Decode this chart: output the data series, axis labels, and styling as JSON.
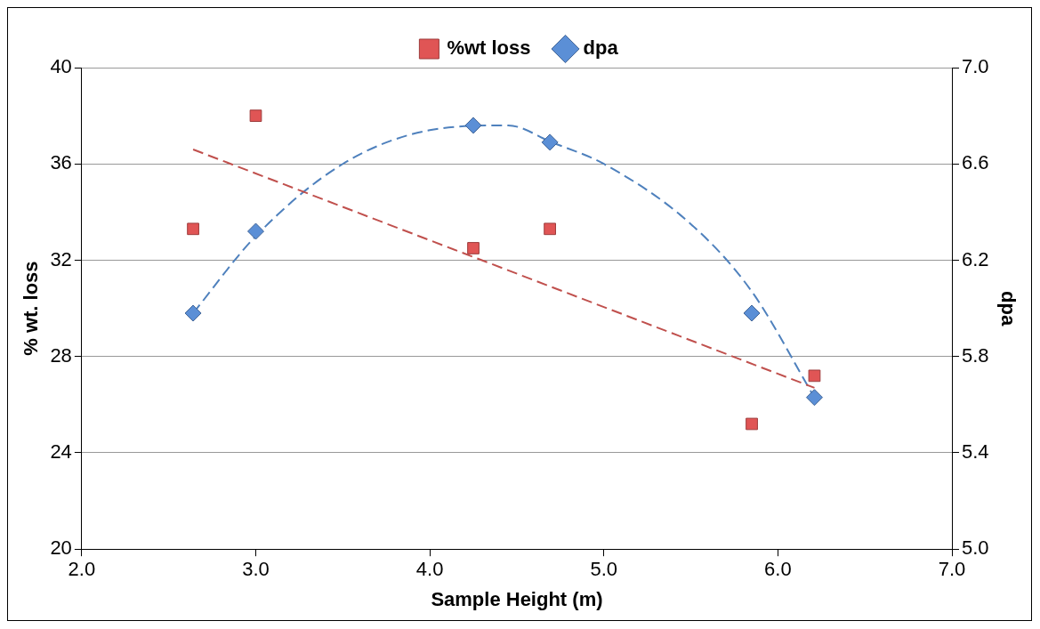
{
  "chart_data": {
    "type": "scatter",
    "xlabel": "Sample Height (m)",
    "ylabel": "% wt. loss",
    "y2label": "dpa",
    "xlim": [
      2,
      7
    ],
    "xticks": [
      {
        "value": 2,
        "label": "2.0"
      },
      {
        "value": 3,
        "label": "3.0"
      },
      {
        "value": 4,
        "label": "4.0"
      },
      {
        "value": 5,
        "label": "5.0"
      },
      {
        "value": 6,
        "label": "6.0"
      },
      {
        "value": 7,
        "label": "7.0"
      }
    ],
    "ylim": [
      20,
      40
    ],
    "yticks": [
      20,
      24,
      28,
      32,
      36,
      40
    ],
    "y2lim": [
      5,
      7
    ],
    "y2ticks": [
      {
        "value": 5,
        "label": "5.0"
      },
      5.4,
      5.8,
      6.2,
      6.6,
      {
        "value": 7,
        "label": "7.0"
      }
    ],
    "grid": "y",
    "legend": "top",
    "series": [
      {
        "name": "%wt loss",
        "marker": "square",
        "color": "#e05555",
        "x": [
          2.64,
          3.0,
          4.25,
          4.69,
          5.85,
          6.21
        ],
        "values": [
          33.3,
          38.0,
          32.5,
          33.3,
          25.2,
          27.2
        ]
      },
      {
        "name": "dpa",
        "marker": "diamond",
        "color": "#5b8fd6",
        "axis": "y2",
        "x": [
          2.64,
          3.0,
          4.25,
          4.69,
          5.85,
          6.21
        ],
        "values": [
          5.98,
          6.32,
          6.76,
          6.69,
          5.98,
          5.63
        ]
      },
      {
        "type": "line",
        "marker": "none",
        "line_style": "dashed",
        "color": "#c0504d",
        "x": [
          2.64,
          6.21
        ],
        "values": [
          36.6,
          26.7
        ]
      },
      {
        "type": "line",
        "marker": "none",
        "line_style": "dashed",
        "color": "#4f81bd",
        "axis": "y2",
        "x": [
          2.64,
          3.0,
          3.5,
          4.0,
          4.45,
          4.7,
          5.0,
          5.5,
          5.85,
          6.21
        ],
        "values": [
          5.98,
          6.3,
          6.6,
          6.74,
          6.76,
          6.69,
          6.6,
          6.35,
          6.07,
          5.63
        ]
      }
    ]
  }
}
